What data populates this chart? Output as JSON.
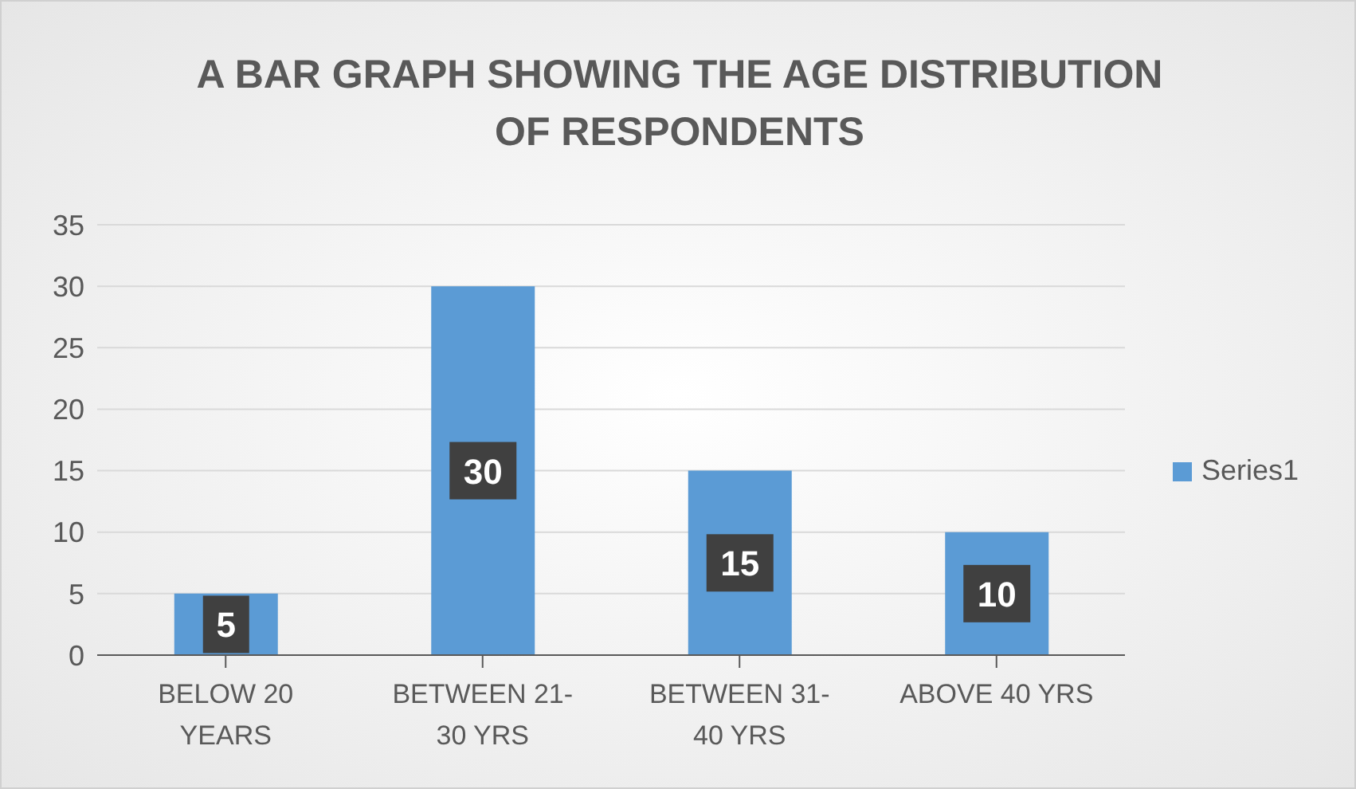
{
  "chart_data": {
    "type": "bar",
    "title": "A BAR GRAPH SHOWING THE AGE DISTRIBUTION OF RESPONDENTS",
    "categories": [
      "BELOW 20 YEARS",
      "BETWEEN 21-30 YRS",
      "BETWEEN 31-40 YRS",
      "ABOVE 40 YRS"
    ],
    "series": [
      {
        "name": "Series1",
        "color": "#5b9bd5",
        "values": [
          5,
          30,
          15,
          10
        ]
      }
    ],
    "ylim": [
      0,
      35
    ],
    "yticks": [
      0,
      5,
      10,
      15,
      20,
      25,
      30,
      35
    ],
    "grid": "y",
    "legend": "right",
    "data_labels": true
  }
}
